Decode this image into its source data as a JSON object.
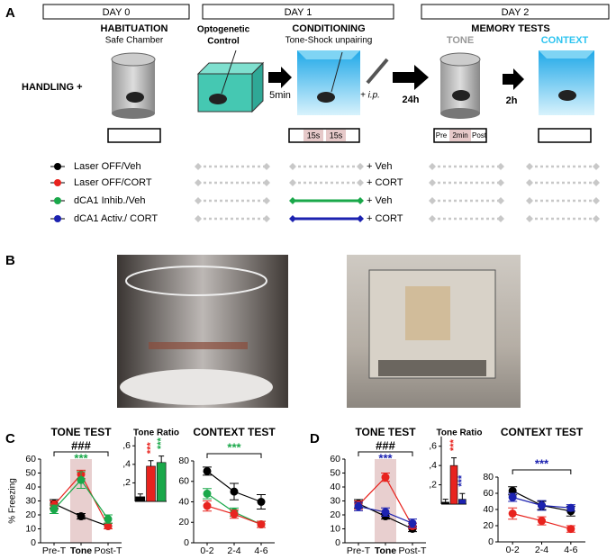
{
  "panel_a": {
    "label": "A",
    "days": [
      "DAY 0",
      "DAY 1",
      "DAY 2"
    ],
    "habituation": {
      "title": "HABITUATION",
      "subtitle": "Safe Chamber"
    },
    "handling": "HANDLING +",
    "optogenetic": [
      "Optogenetic",
      "Control"
    ],
    "conditioning": {
      "title": "CONDITIONING",
      "subtitle": "Tone-Shock unpairing"
    },
    "memory_tests": {
      "title": "MEMORY TESTS",
      "tone": "TONE",
      "context": "CONTEXT"
    },
    "intervals": [
      "5min",
      "24h",
      "2h"
    ],
    "injection": "+ i.p.",
    "tone_blocks": [
      "15s",
      "15s"
    ],
    "tone_test_blocks": [
      "Pre",
      "2min",
      "Post"
    ],
    "groups": [
      {
        "name": "Laser OFF/Veh",
        "color": "#000000",
        "injection": "+ Veh",
        "conditioning_style": "dashed"
      },
      {
        "name": "Laser OFF/CORT",
        "color": "#e8231e",
        "injection": "+ CORT",
        "conditioning_style": "dashed"
      },
      {
        "name": "dCA1 Inhib./Veh",
        "color": "#1aa84a",
        "injection": "+ Veh",
        "conditioning_style": "solid"
      },
      {
        "name": "dCA1 Activ./ CORT",
        "color": "#1c22b0",
        "injection": "+ CORT",
        "conditioning_style": "solid"
      }
    ]
  },
  "panel_b": {
    "label": "B"
  },
  "panel_c": {
    "label": "C"
  },
  "panel_d": {
    "label": "D"
  },
  "chart_data": [
    {
      "type": "line",
      "title": "TONE TEST",
      "ylabel": "% Freezing",
      "categories": [
        "Pre-T",
        "Tone",
        "Post-T"
      ],
      "highlight_category": 1,
      "ylim": [
        0,
        60
      ],
      "yticks": [
        0,
        10,
        20,
        30,
        40,
        50,
        60
      ],
      "annotations": [
        {
          "text": "###",
          "color": "#000000"
        },
        {
          "text": "***",
          "color": "#1aa84a"
        }
      ],
      "series": [
        {
          "color": "#000000",
          "values": [
            28,
            19,
            12
          ],
          "errors": [
            3,
            2,
            2
          ]
        },
        {
          "color": "#e8231e",
          "values": [
            27,
            49,
            12
          ],
          "errors": [
            3,
            3,
            2
          ]
        },
        {
          "color": "#1aa84a",
          "values": [
            24,
            45,
            17
          ],
          "errors": [
            3,
            6,
            3
          ]
        }
      ]
    },
    {
      "type": "bar",
      "title": "Tone Ratio",
      "ylim": [
        0,
        0.7
      ],
      "yticks": [
        {
          "value": 0.2,
          "label": ",2"
        },
        {
          "value": 0.4,
          "label": ",4"
        },
        {
          "value": 0.6,
          "label": ",6"
        }
      ],
      "values": [
        0.05,
        0.38,
        0.42
      ],
      "errors": [
        0.03,
        0.06,
        0.07
      ],
      "colors": [
        "#000000",
        "#e8231e",
        "#1aa84a"
      ],
      "annotations": [
        null,
        "***",
        "***"
      ]
    },
    {
      "type": "line",
      "title": "CONTEXT TEST",
      "categories": [
        "0-2",
        "2-4",
        "4-6"
      ],
      "ylim": [
        0,
        80
      ],
      "yticks": [
        0,
        20,
        40,
        60,
        80
      ],
      "annotations": [
        {
          "text": "***",
          "color": "#1aa84a"
        }
      ],
      "series": [
        {
          "color": "#000000",
          "values": [
            70,
            50,
            40
          ],
          "errors": [
            4,
            8,
            7
          ]
        },
        {
          "color": "#1aa84a",
          "values": [
            48,
            30,
            18
          ],
          "errors": [
            5,
            4,
            3
          ]
        },
        {
          "color": "#e8231e",
          "values": [
            36,
            28,
            18
          ],
          "errors": [
            5,
            4,
            3
          ]
        }
      ]
    },
    {
      "type": "line",
      "title": "TONE TEST",
      "categories": [
        "Pre-T",
        "Tone",
        "Post-T"
      ],
      "highlight_category": 1,
      "ylim": [
        0,
        60
      ],
      "yticks": [
        0,
        10,
        20,
        30,
        40,
        50,
        60
      ],
      "annotations": [
        {
          "text": "###",
          "color": "#000000"
        },
        {
          "text": "***",
          "color": "#1c22b0"
        }
      ],
      "series": [
        {
          "color": "#000000",
          "values": [
            28,
            19,
            10
          ],
          "errors": [
            3,
            2,
            2
          ]
        },
        {
          "color": "#e8231e",
          "values": [
            27,
            47,
            12
          ],
          "errors": [
            3,
            3,
            2
          ]
        },
        {
          "color": "#1c22b0",
          "values": [
            26,
            22,
            14
          ],
          "errors": [
            3,
            3,
            3
          ]
        }
      ]
    },
    {
      "type": "bar",
      "title": "Tone Ratio",
      "ylim": [
        0,
        0.7
      ],
      "yticks": [
        {
          "value": 0.2,
          "label": ",2"
        },
        {
          "value": 0.4,
          "label": ",4"
        },
        {
          "value": 0.6,
          "label": ",6"
        }
      ],
      "values": [
        0.02,
        0.4,
        0.05
      ],
      "errors": [
        0.03,
        0.08,
        0.06
      ],
      "colors": [
        "#000000",
        "#e8231e",
        "#1c22b0"
      ],
      "annotations": [
        null,
        "***",
        "***"
      ]
    },
    {
      "type": "line",
      "title": "CONTEXT TEST",
      "categories": [
        "0-2",
        "2-4",
        "4-6"
      ],
      "ylim": [
        0,
        80
      ],
      "yticks": [
        0,
        20,
        40,
        60,
        80
      ],
      "annotations": [
        {
          "text": "***",
          "color": "#1c22b0"
        }
      ],
      "series": [
        {
          "color": "#000000",
          "values": [
            63,
            45,
            38
          ],
          "errors": [
            5,
            5,
            6
          ]
        },
        {
          "color": "#1c22b0",
          "values": [
            55,
            45,
            42
          ],
          "errors": [
            5,
            6,
            4
          ]
        },
        {
          "color": "#e8231e",
          "values": [
            35,
            26,
            16
          ],
          "errors": [
            7,
            5,
            4
          ]
        }
      ]
    }
  ]
}
